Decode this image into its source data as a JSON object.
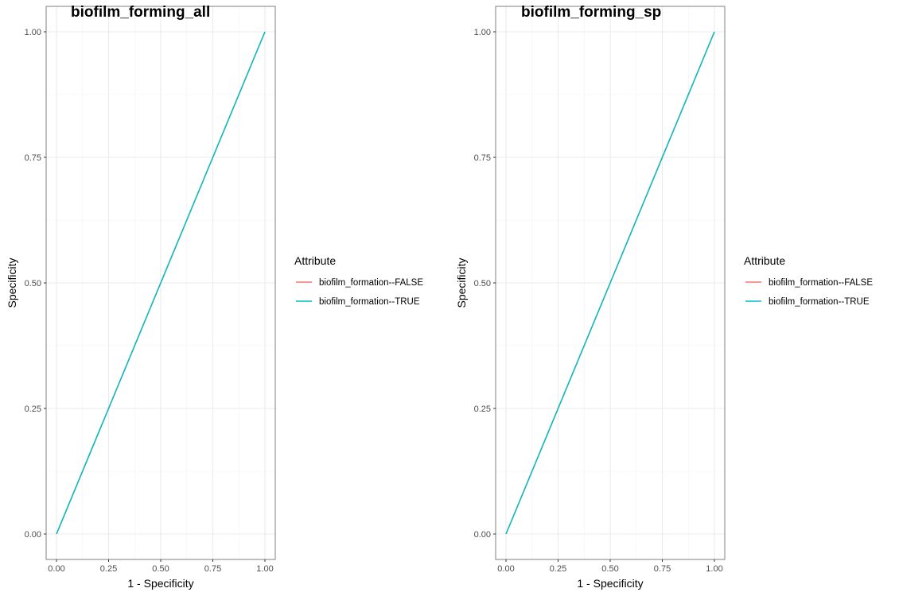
{
  "chart_data": [
    {
      "type": "line",
      "title": "biofilm_forming_all",
      "xlabel": "1 - Specificity",
      "ylabel": "Specificity",
      "xlim": [
        0,
        1
      ],
      "ylim": [
        0,
        1
      ],
      "x_ticks": [
        "0.00",
        "0.25",
        "0.50",
        "0.75",
        "1.00"
      ],
      "y_ticks": [
        "0.00",
        "0.25",
        "0.50",
        "0.75",
        "1.00"
      ],
      "legend_title": "Attribute",
      "legend_position": "right",
      "grid": true,
      "series": [
        {
          "name": "biofilm_formation--FALSE",
          "color": "#F8766D",
          "x": [
            0,
            1
          ],
          "y": [
            0,
            1
          ]
        },
        {
          "name": "biofilm_formation--TRUE",
          "color": "#00BFC4",
          "x": [
            0,
            1
          ],
          "y": [
            0,
            1
          ]
        }
      ]
    },
    {
      "type": "line",
      "title": "biofilm_forming_sp",
      "xlabel": "1 - Specificity",
      "ylabel": "Specificity",
      "xlim": [
        0,
        1
      ],
      "ylim": [
        0,
        1
      ],
      "x_ticks": [
        "0.00",
        "0.25",
        "0.50",
        "0.75",
        "1.00"
      ],
      "y_ticks": [
        "0.00",
        "0.25",
        "0.50",
        "0.75",
        "1.00"
      ],
      "legend_title": "Attribute",
      "legend_position": "right",
      "grid": true,
      "series": [
        {
          "name": "biofilm_formation--FALSE",
          "color": "#F8766D",
          "x": [
            0,
            1
          ],
          "y": [
            0,
            1
          ]
        },
        {
          "name": "biofilm_formation--TRUE",
          "color": "#00BFC4",
          "x": [
            0,
            1
          ],
          "y": [
            0,
            1
          ]
        }
      ]
    }
  ]
}
